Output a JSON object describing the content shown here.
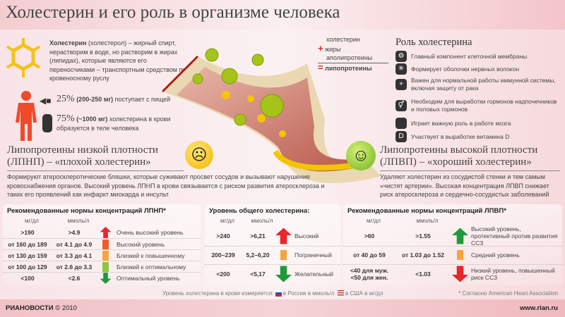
{
  "title": "Холестерин и его роль в организме человека",
  "intro": {
    "bold": "Холестерин",
    "text": " (холестерол) – жирный спирт, нерастворим в воде, но растворим в жирах (липидах), которые являются его переносчиками – транспортным средством по кровеносному руслу"
  },
  "sources": [
    {
      "icon": "cow-icon",
      "pct": "25%",
      "amount": "(200-250 мг)",
      "text": "поступает с пищей"
    },
    {
      "icon": "organs-icon",
      "pct": "75%",
      "amount": "(~1000 мг)",
      "text": "холестерина в крови образуется в теле человека"
    }
  ],
  "formula": {
    "items": [
      "холестерин",
      "жиры",
      "аполипротеины"
    ],
    "result": "липопротеины",
    "plus": "+",
    "equals": "="
  },
  "role": {
    "title": "Роль холестерина",
    "items": [
      {
        "icon": "gears-icon",
        "text": "Главный компонент клеточной мембраны"
      },
      {
        "icon": "neuron-icon",
        "text": "Формирует оболочки нервных волокон"
      },
      {
        "icon": "shield-icon",
        "text": "Важен для нормальной работы иммунной системы, включая защиту от рака"
      },
      {
        "icon": "gender-icon",
        "text": "Необходим для выработки гормонов надпочечников и половых гормонов"
      },
      {
        "icon": "brain-icon",
        "text": "Играет важную роль в работе мозга"
      },
      {
        "icon": "vitamin-d-icon",
        "text": "Участвует в выработке витамина D"
      }
    ]
  },
  "ldl": {
    "title1": "Липопротеины низкой плотности",
    "title2": "(ЛПНП) – «плохой холестерин»",
    "desc": "Формируют атеросклеротические бляшки, которые суживают просвет сосудов и вызывают нарушение кровоснабжения органов. Высокий уровень ЛПНП в крови связывается с риском развития атеросклероза и таких его проявлений как инфаркт миокарда и инсульт"
  },
  "hdl": {
    "title1": "Липопротеины высокой плотности",
    "title2": "(ЛПВП) – «хороший холестерин»",
    "desc": "Удаляют холестерин из сосудистой стенки и тем самым «чистят артерии». Высокая концентрация ЛПВП снижает риск атеросклероза и сердечно-сосудистых заболеваний"
  },
  "tables": [
    {
      "title": "Рекомендованные нормы концентраций ЛПНП*",
      "cols": [
        "мг/дл",
        "ммоль/л"
      ],
      "rows": [
        {
          "mg": ">190",
          "mmol": ">4.9",
          "label": "Очень высокий уровень",
          "color": "#e8262c",
          "mark": "arrow-up"
        },
        {
          "mg": "от 160 до 189",
          "mmol": "от 4.1 до 4.9",
          "label": "Высокий уровень",
          "color": "#f15a2b",
          "mark": "bar"
        },
        {
          "mg": "от 130 до 159",
          "mmol": "от 3.3 до 4.1",
          "label": "Близкий к повышенному",
          "color": "#f7a43a",
          "mark": "bar"
        },
        {
          "mg": "от 100 до 129",
          "mmol": "от 2.6 до 3.3",
          "label": "Близкий к оптимальному",
          "color": "#8cc63f",
          "mark": "bar"
        },
        {
          "mg": "<100",
          "mmol": "<2.6",
          "label": "Оптимальный уровень",
          "color": "#1f9a3a",
          "mark": "arrow-down"
        }
      ]
    },
    {
      "title": "Уровень общего холестерина:",
      "cols": [
        "мг/дл",
        "ммоль/л"
      ],
      "rows": [
        {
          "mg": ">240",
          "mmol": ">6,21",
          "label": "Высокий",
          "color": "#e8262c",
          "mark": "arrow-up"
        },
        {
          "mg": "200–239",
          "mmol": "5,2–6,20",
          "label": "Пограничный",
          "color": "#f7a43a",
          "mark": "bar"
        },
        {
          "mg": "<200",
          "mmol": "<5,17",
          "label": "Желательный",
          "color": "#1f9a3a",
          "mark": "arrow-down"
        }
      ]
    },
    {
      "title": "Рекомендованные нормы концентраций ЛПВП*",
      "cols": [
        "мг/дл",
        "ммоль/л"
      ],
      "rows": [
        {
          "mg": ">60",
          "mmol": ">1.55",
          "label": "Высокий уровень, протективный против развития ССЗ",
          "color": "#1f9a3a",
          "mark": "arrow-up"
        },
        {
          "mg": "от 40 до 59",
          "mmol": "от 1.03 до 1.52",
          "label": "Средний уровень",
          "color": "#f7a43a",
          "mark": "bar"
        },
        {
          "mg": "<40 для муж. <50 для жен.",
          "mmol": "<1.03",
          "label": "Низкий уровень, повышенный риск ССЗ",
          "color": "#e8262c",
          "mark": "arrow-down"
        }
      ]
    }
  ],
  "note": {
    "text": "Уровень холестерина в крови измеряется:",
    "ru": "в России в ммоль/л",
    "us": "в США в мг/дл",
    "source": "* Согласно American Heart Association"
  },
  "footer": {
    "brand": "РИАНОВОСТИ",
    "year": "© 2010",
    "site": "www.rian.ru"
  }
}
